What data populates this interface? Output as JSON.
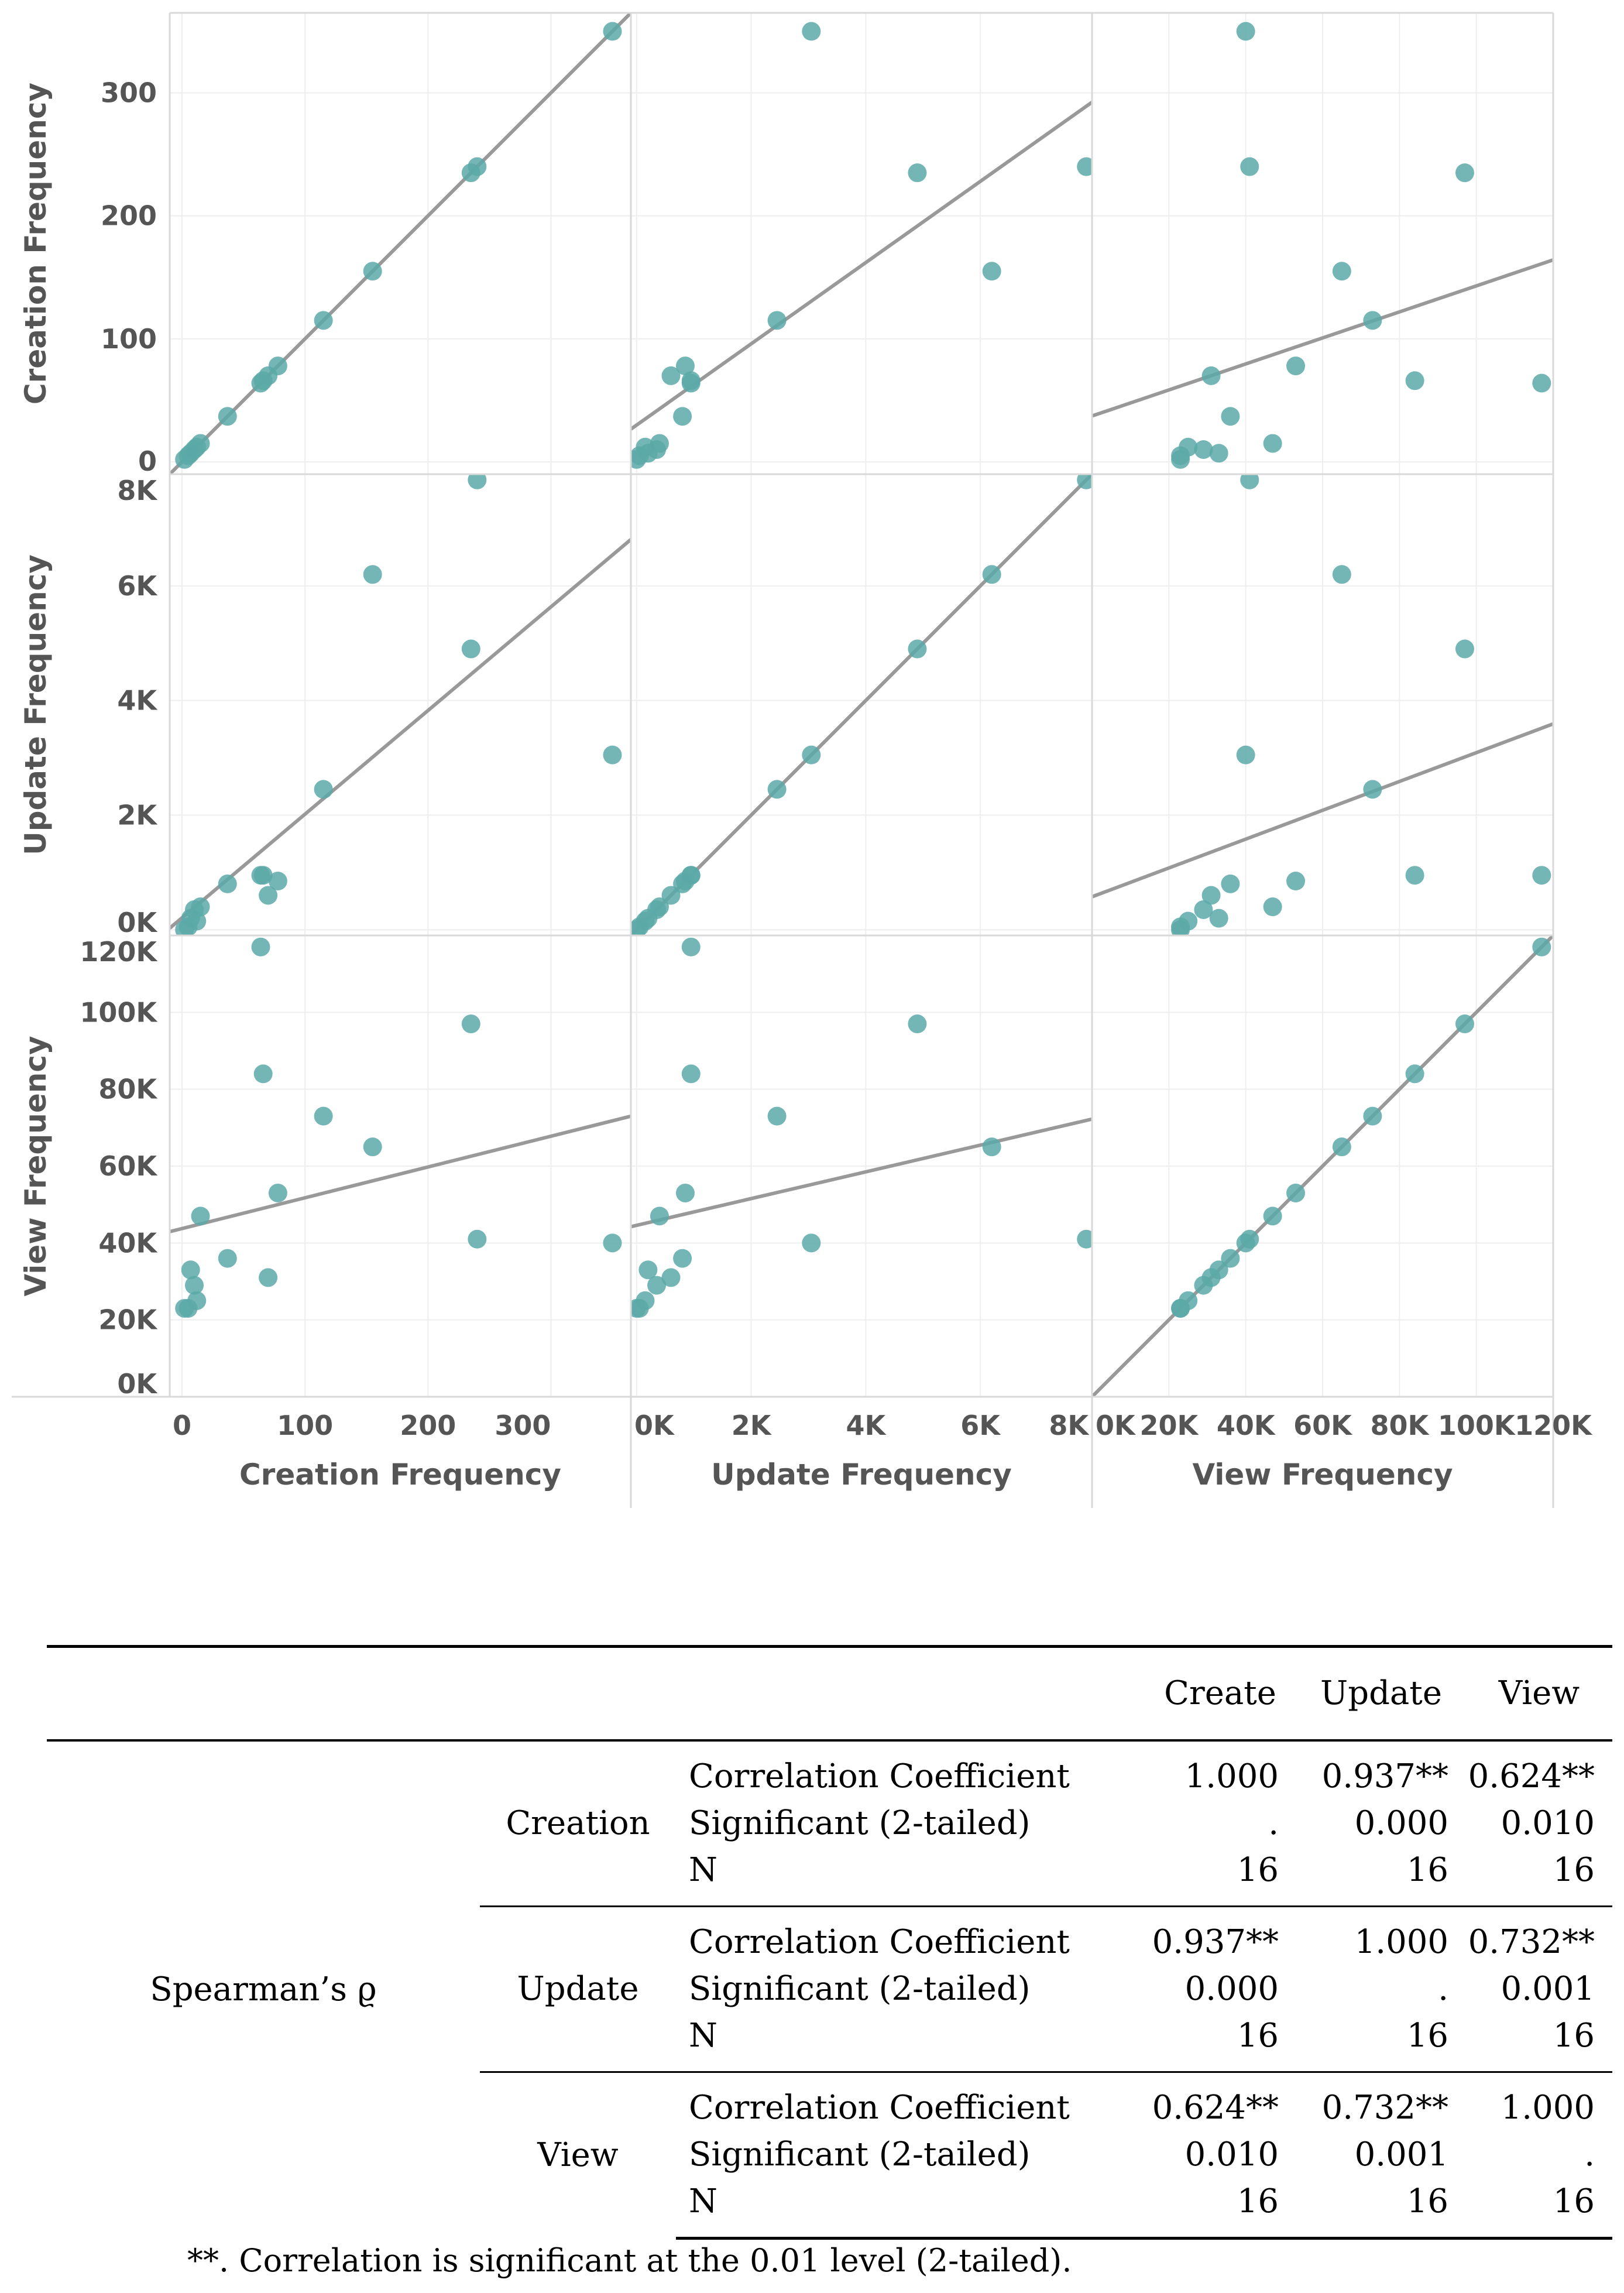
{
  "chart_data": {
    "type": "scatter",
    "title": "",
    "variables": [
      {
        "name": "Creation Frequency",
        "range": [
          -10,
          365
        ],
        "ticks": [
          0,
          100,
          200,
          300
        ],
        "tick_labels": [
          "0",
          "100",
          "200",
          "300"
        ]
      },
      {
        "name": "Update Frequency",
        "range": [
          -100,
          7950
        ],
        "ticks": [
          0,
          2000,
          4000,
          6000,
          8000
        ],
        "tick_labels": [
          "0K",
          "2K",
          "4K",
          "6K",
          "8K"
        ]
      },
      {
        "name": "View Frequency",
        "range": [
          0,
          120000
        ],
        "ticks": [
          0,
          20000,
          40000,
          60000,
          80000,
          100000,
          120000
        ],
        "tick_labels": [
          "0K",
          "20K",
          "40K",
          "60K",
          "80K",
          "100K",
          "120K"
        ]
      }
    ],
    "points": [
      {
        "creation": 350,
        "update": 3050,
        "view": 40000
      },
      {
        "creation": 240,
        "update": 7850,
        "view": 41000
      },
      {
        "creation": 235,
        "update": 4900,
        "view": 97000
      },
      {
        "creation": 155,
        "update": 6200,
        "view": 65000
      },
      {
        "creation": 115,
        "update": 2450,
        "view": 73000
      },
      {
        "creation": 78,
        "update": 850,
        "view": 53000
      },
      {
        "creation": 70,
        "update": 600,
        "view": 31000
      },
      {
        "creation": 66,
        "update": 950,
        "view": 84000
      },
      {
        "creation": 64,
        "update": 950,
        "view": 117000
      },
      {
        "creation": 37,
        "update": 800,
        "view": 36000
      },
      {
        "creation": 15,
        "update": 400,
        "view": 47000
      },
      {
        "creation": 12,
        "update": 150,
        "view": 25000
      },
      {
        "creation": 10,
        "update": 350,
        "view": 29000
      },
      {
        "creation": 7,
        "update": 200,
        "view": 33000
      },
      {
        "creation": 5,
        "update": 50,
        "view": 23000
      },
      {
        "creation": 2,
        "update": 0,
        "view": 23000
      }
    ],
    "trend_lines": "least-squares fit per panel"
  },
  "table": {
    "columns": [
      "",
      "",
      "",
      "Create",
      "Update",
      "View"
    ],
    "row_group": "Spearman’s ϱ",
    "stat_labels": [
      "Correlation Coefficient",
      "Significant (2-tailed)",
      "N"
    ],
    "groups": [
      {
        "label": "Creation",
        "values": [
          [
            "1.000",
            "0.937**",
            "0.624**"
          ],
          [
            ".",
            "0.000",
            "0.010"
          ],
          [
            "16",
            "16",
            "16"
          ]
        ]
      },
      {
        "label": "Update",
        "values": [
          [
            "0.937**",
            "1.000",
            "0.732**"
          ],
          [
            "0.000",
            ".",
            "0.001"
          ],
          [
            "16",
            "16",
            "16"
          ]
        ]
      },
      {
        "label": "View",
        "values": [
          [
            "0.624**",
            "0.732**",
            "1.000"
          ],
          [
            "0.010",
            "0.001",
            "."
          ],
          [
            "16",
            "16",
            "16"
          ]
        ]
      }
    ],
    "footnote": "**. Correlation is significant at the 0.01 level (2-tailed)."
  },
  "colors": {
    "point": "#5aa9a8",
    "trend": "#999999",
    "grid": "#eeeeee",
    "border": "#d9d9d9"
  }
}
